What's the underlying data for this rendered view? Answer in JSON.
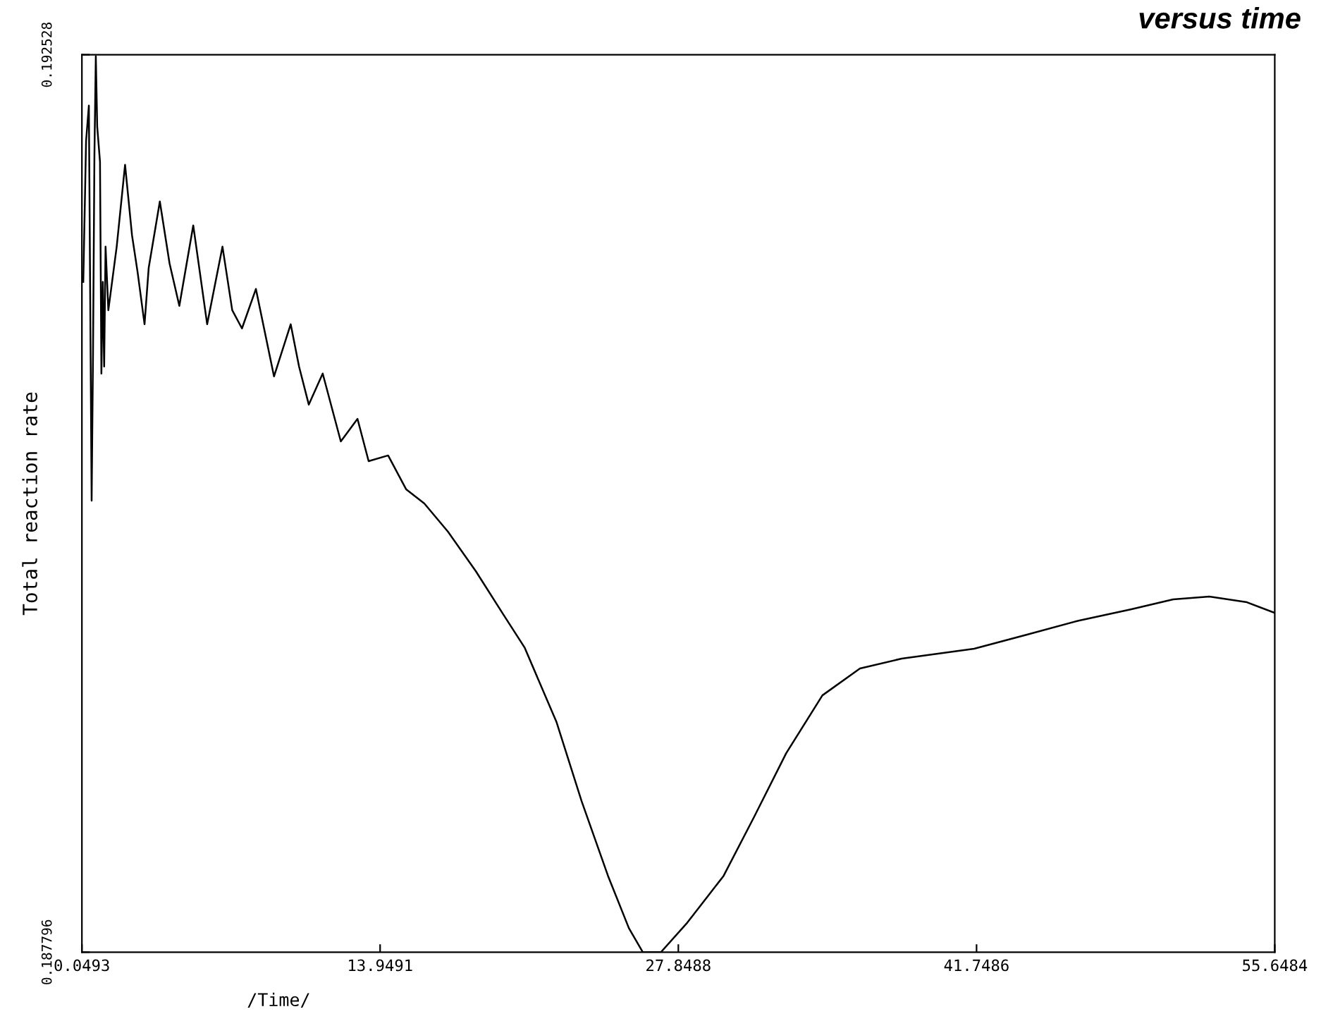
{
  "chart_data": {
    "type": "line",
    "title": "versus time",
    "xlabel": "/Time/",
    "ylabel": "Total reaction rate",
    "xlim": [
      0.0493,
      55.6484
    ],
    "xticks": [
      0.0493,
      13.9491,
      {
        "value": 27.8488,
        "label": "27.8488"
      },
      {
        "value": 41.7486,
        "label": "41.7486"
      },
      55.6484
    ],
    "ylim": [
      0.187796,
      0.192528
    ],
    "yticks": [
      0.187796,
      0.192528
    ],
    "grid": false,
    "marker": "none",
    "line_style": "solid",
    "series": [
      {
        "color": "#000000",
        "x": [
          0.114,
          0.244,
          0.374,
          0.503,
          0.568,
          0.633,
          0.698,
          0.763,
          0.893,
          0.958,
          1.023,
          1.087,
          1.152,
          1.282,
          1.412,
          1.671,
          2.061,
          2.385,
          2.645,
          2.969,
          3.163,
          3.682,
          4.136,
          4.591,
          5.239,
          5.888,
          6.602,
          7.056,
          7.51,
          8.159,
          9.003,
          9.781,
          10.17,
          10.625,
          11.273,
          12.117,
          12.895,
          13.414,
          14.322,
          15.166,
          16.009,
          17.112,
          18.409,
          19.707,
          20.68,
          22.172,
          23.34,
          24.572,
          25.546,
          26.194,
          27.038,
          28.27,
          29.957,
          31.385,
          32.877,
          34.564,
          36.315,
          38.261,
          41.635,
          44.1,
          46.5,
          48.966,
          50.912,
          52.599,
          54.351,
          55.648
        ],
        "values": [
          0.19133,
          0.192074,
          0.19226,
          0.190177,
          0.190958,
          0.192,
          0.19252,
          0.192149,
          0.191963,
          0.190847,
          0.19133,
          0.190884,
          0.191516,
          0.191181,
          0.191293,
          0.191516,
          0.191948,
          0.191576,
          0.191382,
          0.191107,
          0.191405,
          0.191754,
          0.191427,
          0.191204,
          0.191628,
          0.191107,
          0.191516,
          0.191181,
          0.191085,
          0.191293,
          0.190832,
          0.191107,
          0.190884,
          0.190683,
          0.190847,
          0.190489,
          0.190608,
          0.190385,
          0.190415,
          0.190236,
          0.190162,
          0.190013,
          0.189805,
          0.189574,
          0.189403,
          0.189009,
          0.188592,
          0.188198,
          0.187922,
          0.187796,
          0.187796,
          0.187952,
          0.188198,
          0.18851,
          0.188845,
          0.18915,
          0.189292,
          0.189344,
          0.189396,
          0.18947,
          0.189544,
          0.189604,
          0.189656,
          0.189671,
          0.189641,
          0.189585
        ]
      }
    ]
  }
}
